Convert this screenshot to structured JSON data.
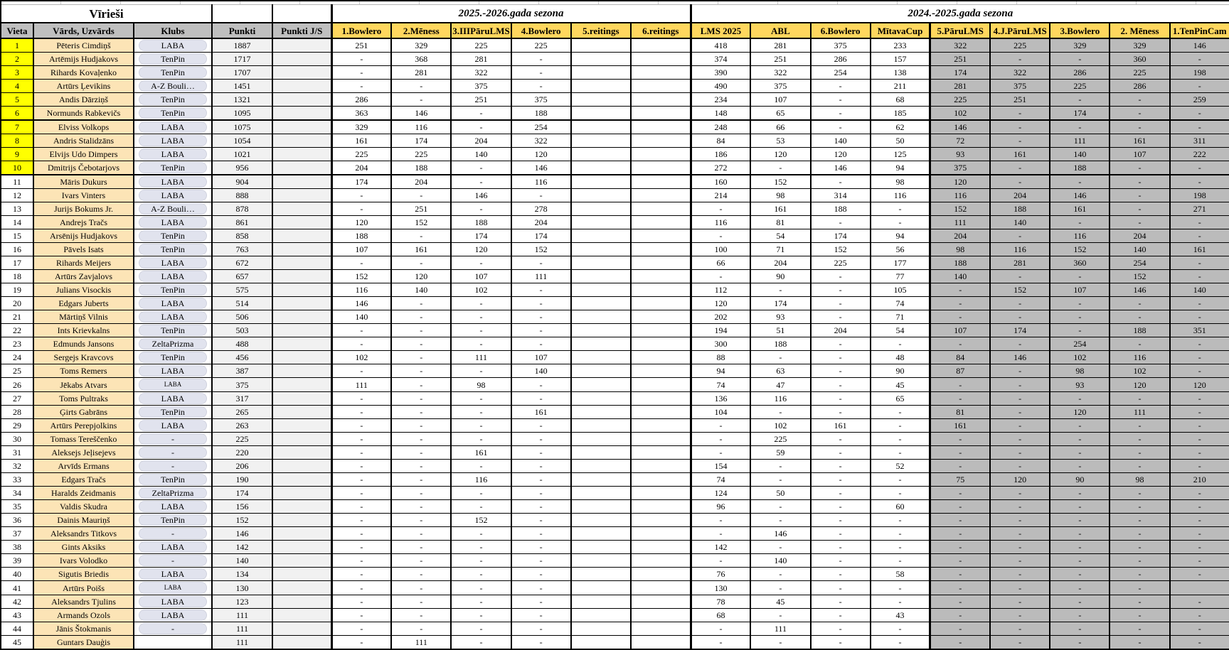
{
  "title": "Vīrieši",
  "base_columns": [
    "Vieta",
    "Vārds, Uzvārds",
    "Klubs",
    "Punkti",
    "Punkti J/S"
  ],
  "season1": {
    "title": "2025.-2026.gada sezona",
    "columns": [
      "1.Bowlero",
      "2.Mēness",
      "3.IIIPāruLMS",
      "4.Bowlero",
      "5.reitings",
      "6.reitings"
    ]
  },
  "season2": {
    "title": "2024.-2025.gada sezona",
    "columns": [
      "LMS 2025",
      "ABL",
      "6.Bowlero",
      "MītavaCup",
      "5.PāruLMS",
      "4.J.PāruLMS",
      "3.Bowlero",
      "2. Mēness",
      "1.TenPinCam"
    ]
  },
  "colors": {
    "yellow": "#FFFF00",
    "cream": "#FCE4B6",
    "band": "#FBE7BC",
    "gold": "#FFD75E",
    "hgray": "#BFBFBF",
    "cellgray": "#BBBBBB",
    "lightgray": "#F1F1F1",
    "pill": "#E1E3EE"
  },
  "rows": [
    {
      "vieta": 1,
      "name": "Pēteris Cimdiņš",
      "klubs": "LABA",
      "punkti": 1887,
      "s1": [
        "251",
        "329",
        "225",
        "225"
      ],
      "s2": [
        "418",
        "281",
        "375",
        "233",
        "322",
        "225",
        "329",
        "329",
        "146"
      ]
    },
    {
      "vieta": 2,
      "name": "Artēmijs Hudjakovs",
      "klubs": "TenPin",
      "punkti": 1717,
      "s1": [
        "-",
        "368",
        "281",
        "-"
      ],
      "s2": [
        "374",
        "251",
        "286",
        "157",
        "251",
        "-",
        "-",
        "360",
        "-"
      ]
    },
    {
      "vieta": 3,
      "name": "Rihards Kovaļenko",
      "klubs": "TenPin",
      "punkti": 1707,
      "s1": [
        "-",
        "281",
        "322",
        "-"
      ],
      "s2": [
        "390",
        "322",
        "254",
        "138",
        "174",
        "322",
        "286",
        "225",
        "198"
      ]
    },
    {
      "vieta": 4,
      "name": "Artūrs Ļevikins",
      "klubs": "A-Z Bouli…",
      "punkti": 1451,
      "s1": [
        "-",
        "-",
        "375",
        "-"
      ],
      "s2": [
        "490",
        "375",
        "-",
        "211",
        "281",
        "375",
        "225",
        "286",
        "-"
      ]
    },
    {
      "vieta": 5,
      "name": "Andis Dārziņš",
      "klubs": "TenPin",
      "punkti": 1321,
      "s1": [
        "286",
        "-",
        "251",
        "375"
      ],
      "s2": [
        "234",
        "107",
        "-",
        "68",
        "225",
        "251",
        "-",
        "-",
        "259"
      ]
    },
    {
      "vieta": 6,
      "name": "Normunds Rabkevičs",
      "klubs": "TenPin",
      "punkti": 1095,
      "s1": [
        "363",
        "146",
        "-",
        "188"
      ],
      "s2": [
        "148",
        "65",
        "-",
        "185",
        "102",
        "-",
        "174",
        "-",
        "-"
      ]
    },
    {
      "vieta": 7,
      "name": "Elviss Volkops",
      "klubs": "LABA",
      "punkti": 1075,
      "s1": [
        "329",
        "116",
        "-",
        "254"
      ],
      "s2": [
        "248",
        "66",
        "-",
        "62",
        "146",
        "-",
        "-",
        "-",
        "-"
      ]
    },
    {
      "vieta": 8,
      "name": "Andris Stalidzāns",
      "klubs": "LABA",
      "punkti": 1054,
      "s1": [
        "161",
        "174",
        "204",
        "322"
      ],
      "s2": [
        "84",
        "53",
        "140",
        "50",
        "72",
        "-",
        "111",
        "161",
        "311"
      ]
    },
    {
      "vieta": 9,
      "name": "Elvijs Udo Dimpers",
      "klubs": "LABA",
      "punkti": 1021,
      "s1": [
        "225",
        "225",
        "140",
        "120"
      ],
      "s2": [
        "186",
        "120",
        "120",
        "125",
        "93",
        "161",
        "140",
        "107",
        "222"
      ]
    },
    {
      "vieta": 10,
      "name": "Dmitrijs Čebotarjovs",
      "klubs": "TenPin",
      "punkti": 956,
      "s1": [
        "204",
        "188",
        "-",
        "146"
      ],
      "s2": [
        "272",
        "-",
        "146",
        "94",
        "375",
        "-",
        "188",
        "-",
        "-"
      ]
    },
    {
      "vieta": 11,
      "name": "Māris Dukurs",
      "klubs": "LABA",
      "punkti": 904,
      "s1": [
        "174",
        "204",
        "-",
        "116"
      ],
      "s2": [
        "160",
        "152",
        "-",
        "98",
        "120",
        "-",
        "-",
        "-",
        "-"
      ]
    },
    {
      "vieta": 12,
      "name": "Ivars Vinters",
      "klubs": "LABA",
      "punkti": 888,
      "s1": [
        "-",
        "-",
        "146",
        "-"
      ],
      "s2": [
        "214",
        "98",
        "314",
        "116",
        "116",
        "204",
        "146",
        "-",
        "198"
      ]
    },
    {
      "vieta": 13,
      "name": "Jurijs Bokums Jr.",
      "klubs": "A-Z Bouli…",
      "punkti": 878,
      "s1": [
        "-",
        "251",
        "-",
        "278"
      ],
      "s2": [
        "-",
        "161",
        "188",
        "-",
        "152",
        "188",
        "161",
        "-",
        "271"
      ]
    },
    {
      "vieta": 14,
      "name": "Andrejs Tračs",
      "klubs": "LABA",
      "punkti": 861,
      "s1": [
        "120",
        "152",
        "188",
        "204"
      ],
      "s2": [
        "116",
        "81",
        "-",
        "-",
        "111",
        "140",
        "-",
        "-",
        "-"
      ]
    },
    {
      "vieta": 15,
      "name": "Arsēnijs Hudjakovs",
      "klubs": "TenPin",
      "punkti": 858,
      "s1": [
        "188",
        "-",
        "174",
        "174"
      ],
      "s2": [
        "-",
        "54",
        "174",
        "94",
        "204",
        "-",
        "116",
        "204",
        "-"
      ]
    },
    {
      "vieta": 16,
      "name": "Pāvels Isats",
      "klubs": "TenPin",
      "punkti": 763,
      "s1": [
        "107",
        "161",
        "120",
        "152"
      ],
      "s2": [
        "100",
        "71",
        "152",
        "56",
        "98",
        "116",
        "152",
        "140",
        "161"
      ]
    },
    {
      "vieta": 17,
      "name": "Rihards Meijers",
      "klubs": "LABA",
      "punkti": 672,
      "s1": [
        "-",
        "-",
        "-",
        "-"
      ],
      "s2": [
        "66",
        "204",
        "225",
        "177",
        "188",
        "281",
        "360",
        "254",
        "-"
      ]
    },
    {
      "vieta": 18,
      "name": "Artūrs Zavjalovs",
      "klubs": "LABA",
      "punkti": 657,
      "s1": [
        "152",
        "120",
        "107",
        "111"
      ],
      "s2": [
        "-",
        "90",
        "-",
        "77",
        "140",
        "-",
        "-",
        "152",
        "-"
      ]
    },
    {
      "vieta": 19,
      "name": "Julians Visockis",
      "klubs": "TenPin",
      "punkti": 575,
      "s1": [
        "116",
        "140",
        "102",
        "-"
      ],
      "s2": [
        "112",
        "-",
        "-",
        "105",
        "-",
        "152",
        "107",
        "146",
        "140"
      ]
    },
    {
      "vieta": 20,
      "name": "Edgars Juberts",
      "klubs": "LABA",
      "punkti": 514,
      "s1": [
        "146",
        "-",
        "-",
        "-"
      ],
      "s2": [
        "120",
        "174",
        "-",
        "74",
        "-",
        "-",
        "-",
        "-",
        "-"
      ]
    },
    {
      "vieta": 21,
      "name": "Mārtiņš Vilnis",
      "klubs": "LABA",
      "punkti": 506,
      "s1": [
        "140",
        "-",
        "-",
        "-"
      ],
      "s2": [
        "202",
        "93",
        "-",
        "71",
        "-",
        "-",
        "-",
        "-",
        "-"
      ]
    },
    {
      "vieta": 22,
      "name": "Ints Krievkalns",
      "klubs": "TenPin",
      "punkti": 503,
      "s1": [
        "-",
        "-",
        "-",
        "-"
      ],
      "s2": [
        "194",
        "51",
        "204",
        "54",
        "107",
        "174",
        "-",
        "188",
        "351"
      ]
    },
    {
      "vieta": 23,
      "name": "Edmunds Jansons",
      "klubs": "ZeltaPrizma",
      "punkti": 488,
      "s1": [
        "-",
        "-",
        "-",
        "-"
      ],
      "s2": [
        "300",
        "188",
        "-",
        "-",
        "-",
        "-",
        "254",
        "-",
        "-"
      ]
    },
    {
      "vieta": 24,
      "name": "Sergejs Kravcovs",
      "klubs": "TenPin",
      "punkti": 456,
      "s1": [
        "102",
        "-",
        "111",
        "107"
      ],
      "s2": [
        "88",
        "-",
        "-",
        "48",
        "84",
        "146",
        "102",
        "116",
        "-"
      ]
    },
    {
      "vieta": 25,
      "name": "Toms Remers",
      "klubs": "LABA",
      "punkti": 387,
      "s1": [
        "-",
        "-",
        "-",
        "140"
      ],
      "s2": [
        "94",
        "63",
        "-",
        "90",
        "87",
        "-",
        "98",
        "102",
        "-"
      ]
    },
    {
      "vieta": 26,
      "name": "Jēkabs Atvars",
      "klubs": "LABA",
      "klubs_small": true,
      "punkti": 375,
      "s1": [
        "111",
        "-",
        "98",
        "-"
      ],
      "s2": [
        "74",
        "47",
        "-",
        "45",
        "-",
        "-",
        "93",
        "120",
        "120"
      ]
    },
    {
      "vieta": 27,
      "name": "Toms Pultraks",
      "klubs": "LABA",
      "punkti": 317,
      "s1": [
        "-",
        "-",
        "-",
        "-"
      ],
      "s2": [
        "136",
        "116",
        "-",
        "65",
        "-",
        "-",
        "-",
        "-",
        "-"
      ]
    },
    {
      "vieta": 28,
      "name": "Ģirts Gabrāns",
      "klubs": "TenPin",
      "punkti": 265,
      "s1": [
        "-",
        "-",
        "-",
        "161"
      ],
      "s2": [
        "104",
        "-",
        "-",
        "-",
        "81",
        "-",
        "120",
        "111",
        "-"
      ]
    },
    {
      "vieta": 29,
      "name": "Artūrs Perepjolkins",
      "klubs": "LABA",
      "punkti": 263,
      "s1": [
        "-",
        "-",
        "-",
        "-"
      ],
      "s2": [
        "-",
        "102",
        "161",
        "-",
        "161",
        "-",
        "-",
        "-",
        "-"
      ]
    },
    {
      "vieta": 30,
      "name": "Tomass Tereščenko",
      "klubs": "-",
      "punkti": 225,
      "s1": [
        "-",
        "-",
        "-",
        "-"
      ],
      "s2": [
        "-",
        "225",
        "-",
        "-",
        "-",
        "-",
        "-",
        "-",
        "-"
      ]
    },
    {
      "vieta": 31,
      "name": "Aleksejs Jeļisejevs",
      "klubs": "-",
      "punkti": 220,
      "s1": [
        "-",
        "-",
        "161",
        "-"
      ],
      "s2": [
        "-",
        "59",
        "-",
        "-",
        "-",
        "-",
        "-",
        "-",
        "-"
      ]
    },
    {
      "vieta": 32,
      "name": "Arvīds Ermans",
      "klubs": "-",
      "punkti": 206,
      "s1": [
        "-",
        "-",
        "-",
        "-"
      ],
      "s2": [
        "154",
        "-",
        "-",
        "52",
        "-",
        "-",
        "-",
        "-",
        "-"
      ]
    },
    {
      "vieta": 33,
      "name": "Edgars Tračs",
      "klubs": "TenPin",
      "punkti": 190,
      "s1": [
        "-",
        "-",
        "116",
        "-"
      ],
      "s2": [
        "74",
        "-",
        "-",
        "-",
        "75",
        "120",
        "90",
        "98",
        "210"
      ]
    },
    {
      "vieta": 34,
      "name": "Haralds Zeidmanis",
      "klubs": "ZeltaPrizma",
      "punkti": 174,
      "s1": [
        "-",
        "-",
        "-",
        "-"
      ],
      "s2": [
        "124",
        "50",
        "-",
        "-",
        "-",
        "-",
        "-",
        "-",
        "-"
      ]
    },
    {
      "vieta": 35,
      "name": "Valdis Skudra",
      "klubs": "LABA",
      "punkti": 156,
      "s1": [
        "-",
        "-",
        "-",
        "-"
      ],
      "s2": [
        "96",
        "-",
        "-",
        "60",
        "-",
        "-",
        "-",
        "-",
        "-"
      ]
    },
    {
      "vieta": 36,
      "name": "Dainis Mauriņš",
      "klubs": "TenPin",
      "punkti": 152,
      "s1": [
        "-",
        "-",
        "152",
        "-"
      ],
      "s2": [
        "-",
        "-",
        "-",
        "-",
        "-",
        "-",
        "-",
        "-",
        "-"
      ]
    },
    {
      "vieta": 37,
      "name": "Aleksandrs Titkovs",
      "klubs": "-",
      "punkti": 146,
      "s1": [
        "-",
        "-",
        "-",
        "-"
      ],
      "s2": [
        "-",
        "146",
        "-",
        "-",
        "-",
        "-",
        "-",
        "-",
        "-"
      ]
    },
    {
      "vieta": 38,
      "name": "Gints Aksiks",
      "klubs": "LABA",
      "punkti": 142,
      "s1": [
        "-",
        "-",
        "-",
        "-"
      ],
      "s2": [
        "142",
        "-",
        "-",
        "-",
        "-",
        "-",
        "-",
        "-",
        "-"
      ]
    },
    {
      "vieta": 39,
      "name": "Ivars Volodko",
      "klubs": "-",
      "punkti": 140,
      "s1": [
        "-",
        "-",
        "-",
        "-"
      ],
      "s2": [
        "-",
        "140",
        "-",
        "-",
        "-",
        "-",
        "-",
        "-",
        "-"
      ]
    },
    {
      "vieta": 40,
      "name": "Sigutis Briedis",
      "klubs": "LABA",
      "punkti": 134,
      "s1": [
        "-",
        "-",
        "-",
        "-"
      ],
      "s2": [
        "76",
        "-",
        "-",
        "58",
        "-",
        "-",
        "-",
        "-",
        "-"
      ]
    },
    {
      "vieta": 41,
      "name": "Artūrs Poišs",
      "klubs": "LABA",
      "klubs_small": true,
      "punkti": 130,
      "s1": [
        "-",
        "-",
        "-",
        "-"
      ],
      "s2": [
        "130",
        "-",
        "-",
        "-",
        "-",
        "-",
        "-",
        "-",
        ""
      ]
    },
    {
      "vieta": 42,
      "name": "Aleksandrs Tjulins",
      "klubs": "LABA",
      "punkti": 123,
      "s1": [
        "-",
        "-",
        "-",
        "-"
      ],
      "s2": [
        "78",
        "45",
        "-",
        "-",
        "-",
        "-",
        "-",
        "-",
        "-"
      ]
    },
    {
      "vieta": 43,
      "name": "Armands Ozols",
      "klubs": "LABA",
      "punkti": 111,
      "s1": [
        "-",
        "-",
        "-",
        "-"
      ],
      "s2": [
        "68",
        "-",
        "-",
        "43",
        "-",
        "-",
        "-",
        "-",
        "-"
      ]
    },
    {
      "vieta": 44,
      "name": "Jānis Štokmanis",
      "klubs": "-",
      "punkti": 111,
      "s1": [
        "-",
        "-",
        "-",
        "-"
      ],
      "s2": [
        "-",
        "111",
        "-",
        "-",
        "-",
        "-",
        "-",
        "-",
        "-"
      ]
    },
    {
      "vieta": 45,
      "name": "Guntars Dauģis",
      "klubs": "",
      "punkti": 111,
      "s1": [
        "-",
        "111",
        "-",
        "-"
      ],
      "s2": [
        "-",
        "-",
        "-",
        "-",
        "-",
        "-",
        "-",
        "-",
        "-"
      ]
    }
  ]
}
